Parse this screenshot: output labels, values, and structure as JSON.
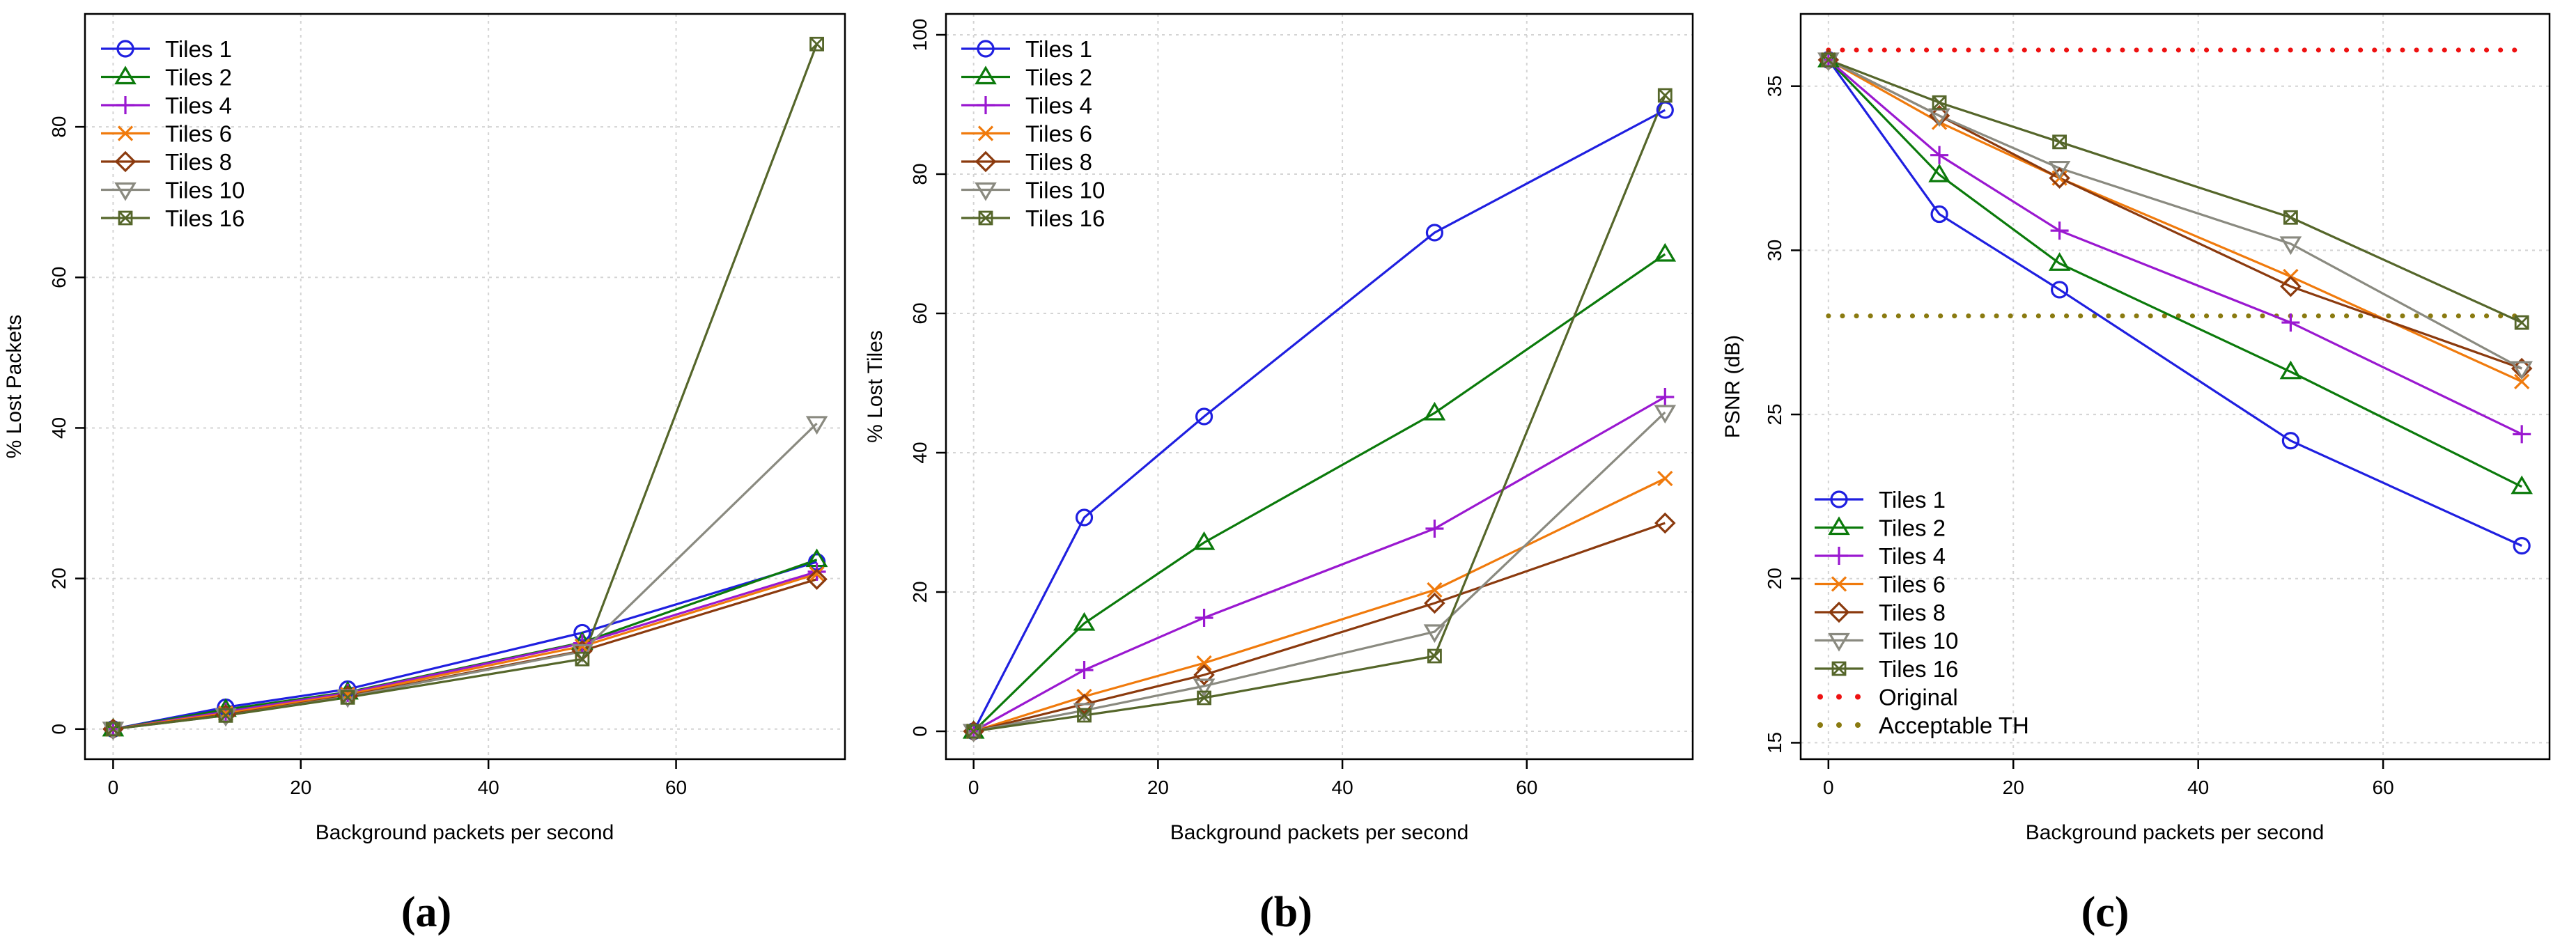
{
  "figure": {
    "panels": [
      "(a)",
      "(b)",
      "(c)"
    ]
  },
  "colors": {
    "Tiles 1": "#1f1fe0",
    "Tiles 2": "#0b7a0b",
    "Tiles 4": "#9a18d0",
    "Tiles 6": "#f07a0c",
    "Tiles 8": "#8b3a0e",
    "Tiles 10": "#8a8a80",
    "Tiles 16": "#55662a",
    "Original": "#ee1111",
    "Acceptable TH": "#8a7a10"
  },
  "chart_data": [
    {
      "type": "line",
      "panel_label": "(a)",
      "xlabel": "Background packets per second",
      "ylabel": "% Lost Packets",
      "xlim": [
        -3,
        78
      ],
      "ylim": [
        -4,
        95
      ],
      "xticks": [
        0,
        20,
        40,
        60
      ],
      "yticks": [
        0,
        20,
        40,
        60,
        80
      ],
      "x": [
        0,
        12,
        25,
        50,
        75
      ],
      "legend_position": "top-left",
      "series": [
        {
          "name": "Tiles 1",
          "marker": "circle",
          "values": [
            0,
            2.9,
            5.3,
            12.8,
            22.2
          ]
        },
        {
          "name": "Tiles 2",
          "marker": "triangle-up",
          "values": [
            0,
            2.6,
            4.9,
            11.5,
            22.5
          ]
        },
        {
          "name": "Tiles 4",
          "marker": "plus",
          "values": [
            0,
            2.3,
            4.8,
            11.4,
            20.9
          ]
        },
        {
          "name": "Tiles 6",
          "marker": "cross",
          "values": [
            0,
            2.1,
            4.6,
            11.0,
            20.6
          ]
        },
        {
          "name": "Tiles 8",
          "marker": "diamond",
          "values": [
            0,
            1.9,
            4.4,
            10.4,
            19.9
          ]
        },
        {
          "name": "Tiles 10",
          "marker": "triangle-down",
          "values": [
            0,
            1.8,
            4.3,
            10.3,
            40.6
          ]
        },
        {
          "name": "Tiles 16",
          "marker": "square-x",
          "values": [
            0,
            1.8,
            4.2,
            9.3,
            91.0
          ]
        }
      ]
    },
    {
      "type": "line",
      "panel_label": "(b)",
      "xlabel": "Background packets per second",
      "ylabel": "% Lost Tiles",
      "xlim": [
        -3,
        78
      ],
      "ylim": [
        -4,
        103
      ],
      "xticks": [
        0,
        20,
        40,
        60
      ],
      "yticks": [
        0,
        20,
        40,
        60,
        80,
        100
      ],
      "x": [
        0,
        12,
        25,
        50,
        75
      ],
      "legend_position": "top-left",
      "series": [
        {
          "name": "Tiles 1",
          "marker": "circle",
          "values": [
            0,
            30.7,
            45.2,
            71.6,
            89.2
          ]
        },
        {
          "name": "Tiles 2",
          "marker": "triangle-up",
          "values": [
            0,
            15.5,
            27.1,
            45.7,
            68.5
          ]
        },
        {
          "name": "Tiles 4",
          "marker": "plus",
          "values": [
            0,
            8.8,
            16.3,
            29.1,
            48.0
          ]
        },
        {
          "name": "Tiles 6",
          "marker": "cross",
          "values": [
            0,
            5.0,
            9.8,
            20.3,
            36.3
          ]
        },
        {
          "name": "Tiles 8",
          "marker": "diamond",
          "values": [
            0,
            3.9,
            8.1,
            18.4,
            29.9
          ]
        },
        {
          "name": "Tiles 10",
          "marker": "triangle-down",
          "values": [
            0,
            3.0,
            6.5,
            14.3,
            45.8
          ]
        },
        {
          "name": "Tiles 16",
          "marker": "square-x",
          "values": [
            0,
            2.3,
            4.8,
            10.8,
            91.3
          ]
        }
      ]
    },
    {
      "type": "line",
      "panel_label": "(c)",
      "xlabel": "Background packets per second",
      "ylabel": "PSNR (dB)",
      "xlim": [
        -3,
        78
      ],
      "ylim": [
        14.5,
        37.2
      ],
      "xticks": [
        0,
        20,
        40,
        60
      ],
      "yticks": [
        15,
        20,
        25,
        30,
        35
      ],
      "x": [
        0,
        12,
        25,
        50,
        75
      ],
      "legend_position": "bottom-left",
      "series": [
        {
          "name": "Tiles 1",
          "marker": "circle",
          "values": [
            35.8,
            31.1,
            28.8,
            24.2,
            21.0
          ]
        },
        {
          "name": "Tiles 2",
          "marker": "triangle-up",
          "values": [
            35.8,
            32.3,
            29.6,
            26.3,
            22.8
          ]
        },
        {
          "name": "Tiles 4",
          "marker": "plus",
          "values": [
            35.8,
            32.9,
            30.6,
            27.8,
            24.4
          ]
        },
        {
          "name": "Tiles 6",
          "marker": "cross",
          "values": [
            35.8,
            33.9,
            32.2,
            29.2,
            26.0
          ]
        },
        {
          "name": "Tiles 8",
          "marker": "diamond",
          "values": [
            35.8,
            34.1,
            32.2,
            28.9,
            26.4
          ]
        },
        {
          "name": "Tiles 10",
          "marker": "triangle-down",
          "values": [
            35.8,
            34.1,
            32.5,
            30.2,
            26.4
          ]
        },
        {
          "name": "Tiles 16",
          "marker": "square-x",
          "values": [
            35.8,
            34.5,
            33.3,
            31.0,
            27.8
          ]
        }
      ],
      "reference_lines": [
        {
          "name": "Original",
          "value": 36.1
        },
        {
          "name": "Acceptable TH",
          "value": 28.0
        }
      ]
    }
  ]
}
